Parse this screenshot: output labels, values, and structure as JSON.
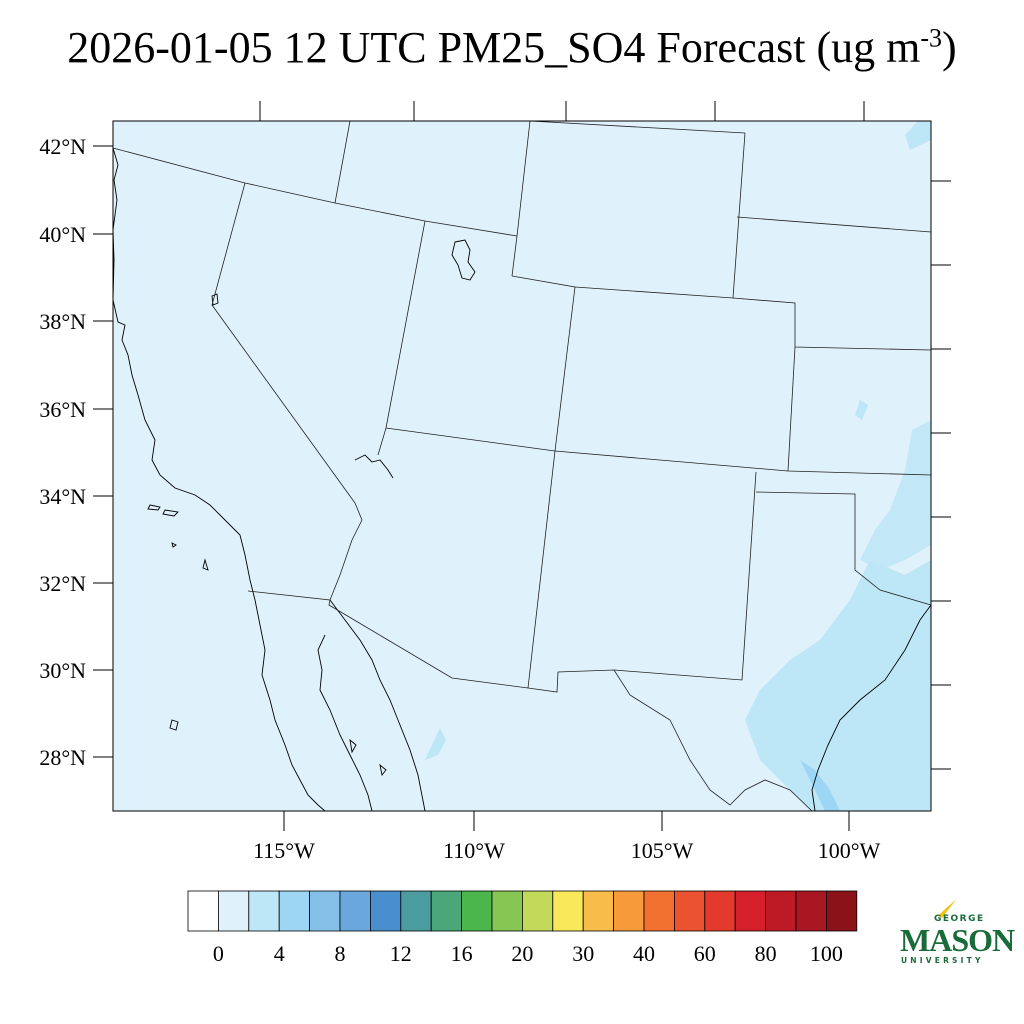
{
  "title": {
    "main": "2026-01-05 12 UTC PM25_SO4 Forecast (ug m",
    "superscript": "-3",
    "close": ")"
  },
  "map": {
    "lat_labels": [
      "42°N",
      "40°N",
      "38°N",
      "36°N",
      "34°N",
      "32°N",
      "30°N",
      "28°N"
    ],
    "lon_labels": [
      "115°W",
      "110°W",
      "105°W",
      "100°W"
    ],
    "background_color": "#dff1fb"
  },
  "colorbar": {
    "colors": [
      "#ffffff",
      "#dff1fb",
      "#bde6f7",
      "#9dd6f4",
      "#84c0e8",
      "#69a7dc",
      "#4a8fcd",
      "#4a9c9e",
      "#4aa77a",
      "#4ab64b",
      "#87c653",
      "#c3d95a",
      "#f8e85a",
      "#f8bc4a",
      "#f69a3a",
      "#f27030",
      "#ea5230",
      "#e33a2c",
      "#d51f2a",
      "#bd1a26",
      "#a81722",
      "#8b1219"
    ],
    "labels": [
      "0",
      "4",
      "8",
      "12",
      "16",
      "20",
      "30",
      "40",
      "60",
      "80",
      "100"
    ]
  },
  "logo": {
    "george": "GEORGE",
    "mason": "MASON",
    "university": "UNIVERSITY"
  }
}
